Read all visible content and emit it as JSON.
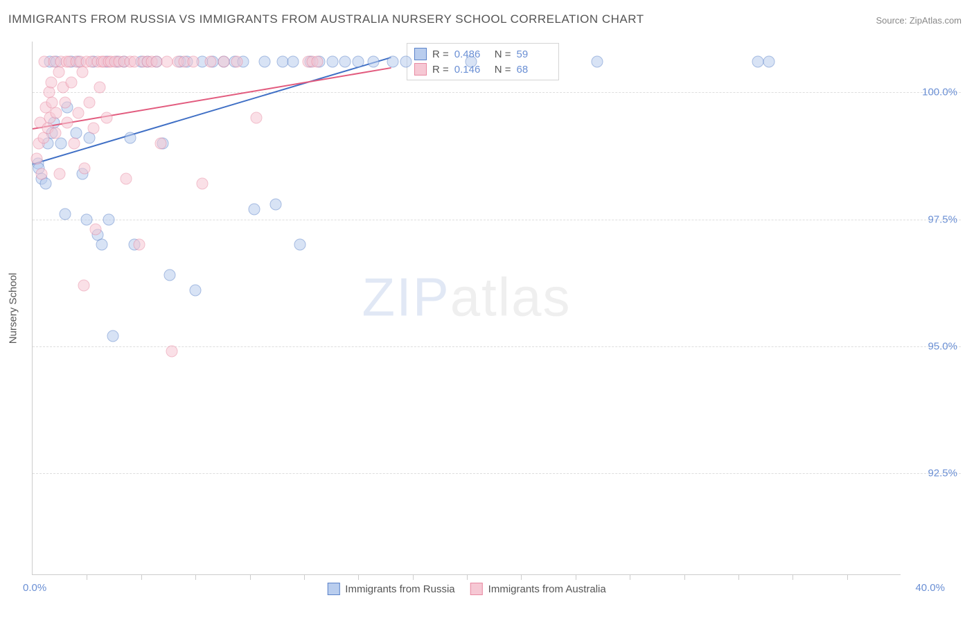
{
  "title": "IMMIGRANTS FROM RUSSIA VS IMMIGRANTS FROM AUSTRALIA NURSERY SCHOOL CORRELATION CHART",
  "source": "Source: ZipAtlas.com",
  "ylabel": "Nursery School",
  "watermark_a": "ZIP",
  "watermark_b": "atlas",
  "chart": {
    "type": "scatter",
    "background_color": "#ffffff",
    "grid_color": "#dddddd",
    "axis_color": "#cccccc",
    "xlim": [
      0,
      40
    ],
    "ylim": [
      90.5,
      101
    ],
    "x_tick_left": "0.0%",
    "x_tick_right": "40.0%",
    "x_minor_ticks": [
      2.5,
      5,
      7.5,
      10,
      12.5,
      15,
      17.5,
      20,
      22.5,
      25,
      27.5,
      30,
      32.5,
      35,
      37.5
    ],
    "y_ticks": [
      {
        "v": 100.0,
        "label": "100.0%"
      },
      {
        "v": 97.5,
        "label": "97.5%"
      },
      {
        "v": 95.0,
        "label": "95.0%"
      },
      {
        "v": 92.5,
        "label": "92.5%"
      }
    ],
    "marker_radius": 8.5,
    "marker_opacity": 0.55,
    "label_fontsize": 15,
    "title_fontsize": 17,
    "series": [
      {
        "name": "Immigrants from Russia",
        "fill": "#b9cdee",
        "stroke": "#5a82c9",
        "line_color": "#3f6fc5",
        "R_label": "R =",
        "R": "0.486",
        "N_label": "N =",
        "N": "59",
        "regression": {
          "x1": 0,
          "y1": 98.6,
          "x2": 16.5,
          "y2": 100.7
        },
        "points": [
          [
            0.25,
            98.6
          ],
          [
            0.3,
            98.5
          ],
          [
            0.4,
            98.3
          ],
          [
            0.6,
            98.2
          ],
          [
            0.7,
            99.0
          ],
          [
            0.8,
            100.6
          ],
          [
            0.9,
            99.2
          ],
          [
            1.0,
            99.4
          ],
          [
            1.1,
            100.6
          ],
          [
            1.3,
            99.0
          ],
          [
            1.5,
            97.6
          ],
          [
            1.6,
            99.7
          ],
          [
            1.8,
            100.6
          ],
          [
            2.0,
            99.2
          ],
          [
            2.1,
            100.6
          ],
          [
            2.3,
            98.4
          ],
          [
            2.5,
            97.5
          ],
          [
            2.6,
            99.1
          ],
          [
            2.8,
            100.6
          ],
          [
            3.0,
            97.2
          ],
          [
            3.2,
            97.0
          ],
          [
            3.4,
            100.6
          ],
          [
            3.5,
            97.5
          ],
          [
            3.7,
            95.2
          ],
          [
            3.9,
            100.6
          ],
          [
            4.2,
            100.6
          ],
          [
            4.5,
            99.1
          ],
          [
            4.7,
            97.0
          ],
          [
            5.0,
            100.6
          ],
          [
            5.3,
            100.6
          ],
          [
            5.7,
            100.6
          ],
          [
            6.0,
            99.0
          ],
          [
            6.3,
            96.4
          ],
          [
            6.8,
            100.6
          ],
          [
            7.1,
            100.6
          ],
          [
            7.5,
            96.1
          ],
          [
            7.8,
            100.6
          ],
          [
            8.3,
            100.6
          ],
          [
            8.8,
            100.6
          ],
          [
            9.3,
            100.6
          ],
          [
            9.7,
            100.6
          ],
          [
            10.2,
            97.7
          ],
          [
            10.7,
            100.6
          ],
          [
            11.2,
            97.8
          ],
          [
            11.5,
            100.6
          ],
          [
            12.0,
            100.6
          ],
          [
            12.3,
            97.0
          ],
          [
            12.8,
            100.6
          ],
          [
            13.2,
            100.6
          ],
          [
            13.8,
            100.6
          ],
          [
            14.4,
            100.6
          ],
          [
            15.0,
            100.6
          ],
          [
            15.7,
            100.6
          ],
          [
            16.6,
            100.6
          ],
          [
            17.2,
            100.6
          ],
          [
            20.2,
            100.6
          ],
          [
            26.0,
            100.6
          ],
          [
            33.4,
            100.6
          ],
          [
            33.9,
            100.6
          ]
        ]
      },
      {
        "name": "Immigrants from Australia",
        "fill": "#f6c8d4",
        "stroke": "#e88aa2",
        "line_color": "#e25b7e",
        "R_label": "R =",
        "R": "0.146",
        "N_label": "N =",
        "N": "68",
        "regression": {
          "x1": 0,
          "y1": 99.3,
          "x2": 16.5,
          "y2": 100.5
        },
        "points": [
          [
            0.2,
            98.7
          ],
          [
            0.3,
            99.0
          ],
          [
            0.35,
            99.4
          ],
          [
            0.4,
            98.4
          ],
          [
            0.5,
            99.1
          ],
          [
            0.55,
            100.6
          ],
          [
            0.6,
            99.7
          ],
          [
            0.7,
            99.3
          ],
          [
            0.75,
            100.0
          ],
          [
            0.8,
            99.5
          ],
          [
            0.85,
            100.2
          ],
          [
            0.9,
            99.8
          ],
          [
            1.0,
            100.6
          ],
          [
            1.05,
            99.2
          ],
          [
            1.1,
            99.6
          ],
          [
            1.2,
            100.4
          ],
          [
            1.25,
            98.4
          ],
          [
            1.3,
            100.6
          ],
          [
            1.4,
            100.1
          ],
          [
            1.5,
            99.8
          ],
          [
            1.55,
            100.6
          ],
          [
            1.6,
            99.4
          ],
          [
            1.7,
            100.6
          ],
          [
            1.8,
            100.2
          ],
          [
            1.9,
            99.0
          ],
          [
            2.0,
            100.6
          ],
          [
            2.1,
            99.6
          ],
          [
            2.2,
            100.6
          ],
          [
            2.3,
            100.4
          ],
          [
            2.35,
            96.2
          ],
          [
            2.4,
            98.5
          ],
          [
            2.5,
            100.6
          ],
          [
            2.6,
            99.8
          ],
          [
            2.7,
            100.6
          ],
          [
            2.8,
            99.3
          ],
          [
            2.9,
            97.3
          ],
          [
            3.0,
            100.6
          ],
          [
            3.1,
            100.1
          ],
          [
            3.2,
            100.6
          ],
          [
            3.3,
            100.6
          ],
          [
            3.4,
            99.5
          ],
          [
            3.5,
            100.6
          ],
          [
            3.6,
            100.6
          ],
          [
            3.8,
            100.6
          ],
          [
            4.0,
            100.6
          ],
          [
            4.2,
            100.6
          ],
          [
            4.3,
            98.3
          ],
          [
            4.5,
            100.6
          ],
          [
            4.7,
            100.6
          ],
          [
            4.9,
            97.0
          ],
          [
            5.1,
            100.6
          ],
          [
            5.3,
            100.6
          ],
          [
            5.5,
            100.6
          ],
          [
            5.7,
            100.6
          ],
          [
            5.9,
            99.0
          ],
          [
            6.2,
            100.6
          ],
          [
            6.4,
            94.9
          ],
          [
            6.7,
            100.6
          ],
          [
            7.0,
            100.6
          ],
          [
            7.4,
            100.6
          ],
          [
            7.8,
            98.2
          ],
          [
            8.2,
            100.6
          ],
          [
            8.8,
            100.6
          ],
          [
            9.4,
            100.6
          ],
          [
            10.3,
            99.5
          ],
          [
            12.7,
            100.6
          ],
          [
            12.9,
            100.6
          ],
          [
            13.1,
            100.6
          ]
        ]
      }
    ]
  }
}
